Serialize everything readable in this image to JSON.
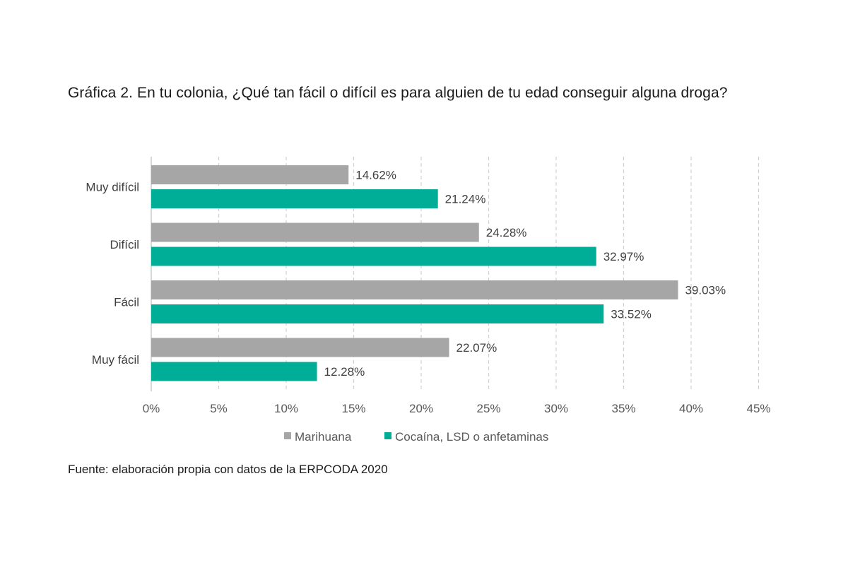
{
  "chart_data": {
    "type": "bar",
    "orientation": "horizontal",
    "title": "Gráfica 2. En tu colonia, ¿Qué tan fácil o difícil es para alguien de tu edad conseguir alguna droga?",
    "source": "Fuente: elaboración propia con datos de la ERPCODA 2020",
    "categories": [
      "Muy difícil",
      "Difícil",
      "Fácil",
      "Muy fácil"
    ],
    "series": [
      {
        "name": "Marihuana",
        "color": "#a6a6a6",
        "values": [
          14.62,
          24.28,
          39.03,
          22.07
        ]
      },
      {
        "name": "Cocaína, LSD o anfetaminas",
        "color": "#00ad97",
        "values": [
          21.24,
          32.97,
          33.52,
          12.28
        ]
      }
    ],
    "xlim": [
      0,
      45
    ],
    "ticks": [
      "0%",
      "5%",
      "10%",
      "15%",
      "20%",
      "25%",
      "30%",
      "35%",
      "40%",
      "45%"
    ],
    "tick_values": [
      0,
      5,
      10,
      15,
      20,
      25,
      30,
      35,
      40,
      45
    ],
    "value_suffix": "%",
    "grid": "vertical-dashed",
    "legend_position": "bottom"
  }
}
